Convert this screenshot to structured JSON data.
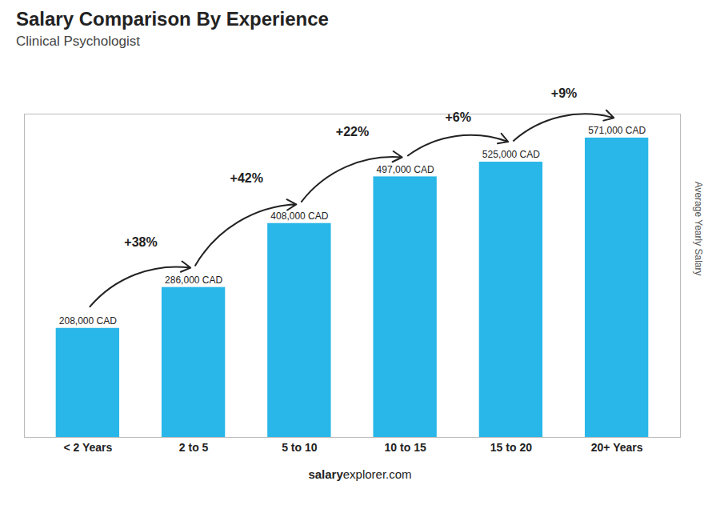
{
  "chart_data": {
    "type": "bar",
    "title": "Salary Comparison By Experience",
    "subtitle": "Clinical Psychologist",
    "ylabel": "Average Yearly Salary",
    "categories": [
      "< 2 Years",
      "2 to 5",
      "5 to 10",
      "10 to 15",
      "15 to 20",
      "20+ Years"
    ],
    "values": [
      208000,
      286000,
      408000,
      497000,
      525000,
      571000
    ],
    "value_labels": [
      "208,000 CAD",
      "286,000 CAD",
      "408,000 CAD",
      "497,000 CAD",
      "525,000 CAD",
      "571,000 CAD"
    ],
    "data_labels": true,
    "color": "#29b6e8",
    "ylim": [
      0,
      616680
    ],
    "yticks": [],
    "tick_labels": "x",
    "grid": false,
    "annotations": [
      {
        "from": "< 2 Years",
        "to": "2 to 5",
        "text": "+38%"
      },
      {
        "from": "2 to 5",
        "to": "5 to 10",
        "text": "+42%"
      },
      {
        "from": "5 to 10",
        "to": "10 to 15",
        "text": "+22%"
      },
      {
        "from": "10 to 15",
        "to": "15 to 20",
        "text": "+6%"
      },
      {
        "from": "15 to 20",
        "to": "20+ Years",
        "text": "+9%"
      }
    ],
    "footer": [
      "salary",
      "explorer.com"
    ]
  }
}
